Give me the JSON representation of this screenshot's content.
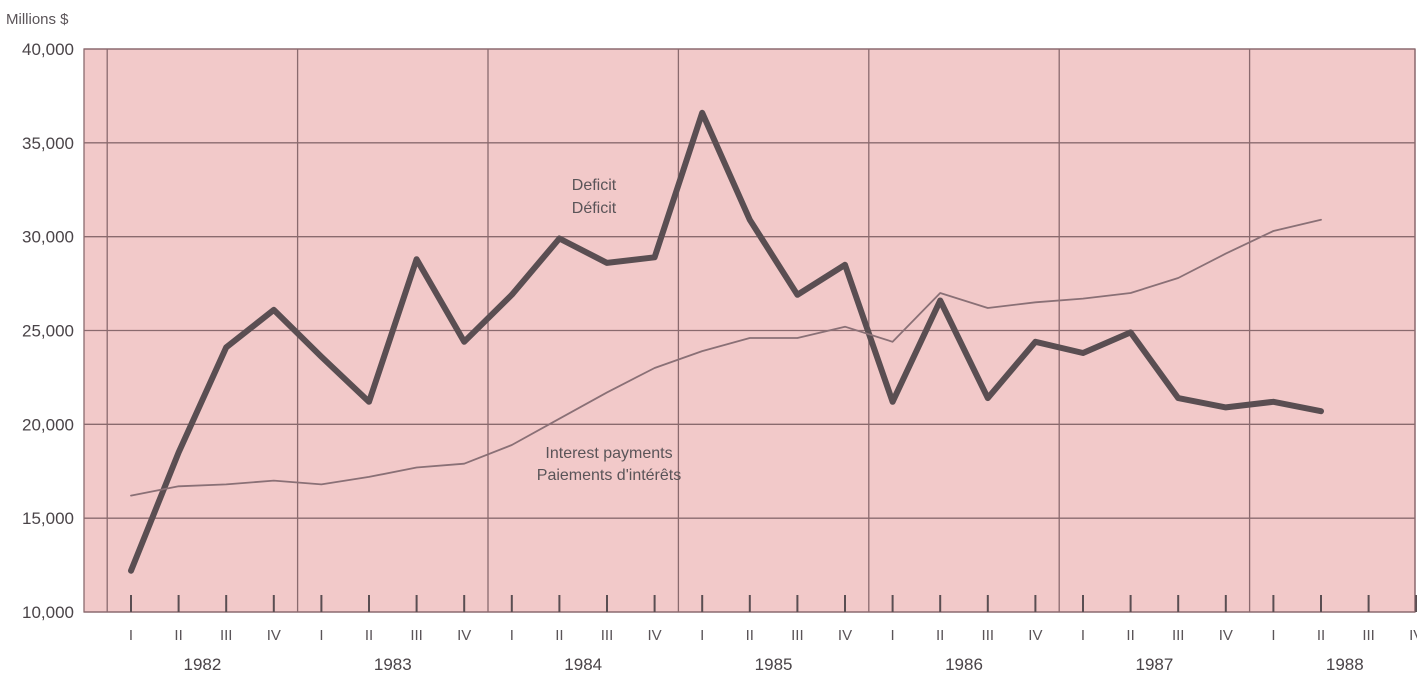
{
  "chart_data": {
    "type": "line",
    "ylabel": "Millions $",
    "ylim": [
      10000,
      40000
    ],
    "yticks": [
      10000,
      15000,
      20000,
      25000,
      30000,
      35000,
      40000
    ],
    "ytick_labels": [
      "10,000",
      "15,000",
      "20,000",
      "25,000",
      "30,000",
      "35,000",
      "40,000"
    ],
    "years": [
      "1982",
      "1983",
      "1984",
      "1985",
      "1986",
      "1987",
      "1988"
    ],
    "quarter_labels": [
      "I",
      "II",
      "III",
      "IV"
    ],
    "x": [
      "1982 I",
      "1982 II",
      "1982 III",
      "1982 IV",
      "1983 I",
      "1983 II",
      "1983 III",
      "1983 IV",
      "1984 I",
      "1984 II",
      "1984 III",
      "1984 IV",
      "1985 I",
      "1985 II",
      "1985 III",
      "1985 IV",
      "1986 I",
      "1986 II",
      "1986 III",
      "1986 IV",
      "1987 I",
      "1987 II",
      "1987 III",
      "1987 IV",
      "1988 I",
      "1988 II"
    ],
    "series": [
      {
        "name": "Deficit / Déficit",
        "label_lines": [
          "Deficit",
          "Déficit"
        ],
        "style": "thick",
        "color": "#5a4e52",
        "values": [
          12200,
          18500,
          24100,
          26100,
          23600,
          21200,
          28800,
          24400,
          26900,
          29900,
          28600,
          28900,
          36600,
          30900,
          26900,
          28500,
          21200,
          26600,
          21400,
          24400,
          23800,
          24900,
          21400,
          20900,
          21200,
          20700
        ]
      },
      {
        "name": "Interest payments / Paiements d'intérêts",
        "label_lines": [
          "Interest payments",
          "Paiements d'intérêts"
        ],
        "style": "thin",
        "color": "#8a7076",
        "values": [
          16200,
          16700,
          16800,
          17000,
          16800,
          17200,
          17700,
          17900,
          18900,
          20300,
          21700,
          23000,
          23900,
          24600,
          24600,
          25200,
          24400,
          27000,
          26200,
          26500,
          26700,
          27000,
          27800,
          29100,
          30300,
          30900
        ]
      }
    ],
    "background_color": "#f2c9c9",
    "grid": true
  }
}
